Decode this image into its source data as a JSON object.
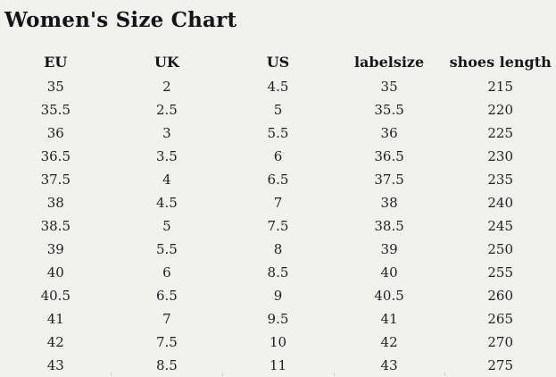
{
  "title": "Women's Size Chart",
  "colors": {
    "background": "#f1f1ef",
    "text": "#1b1b1b",
    "tick_gray": "#c9c9c6"
  },
  "chart_data": {
    "type": "table",
    "title": "Women's Size Chart",
    "columns": [
      "EU",
      "UK",
      "US",
      "labelsize",
      "shoes length"
    ],
    "rows": [
      [
        "35",
        "2",
        "4.5",
        "35",
        "215"
      ],
      [
        "35.5",
        "2.5",
        "5",
        "35.5",
        "220"
      ],
      [
        "36",
        "3",
        "5.5",
        "36",
        "225"
      ],
      [
        "36.5",
        "3.5",
        "6",
        "36.5",
        "230"
      ],
      [
        "37.5",
        "4",
        "6.5",
        "37.5",
        "235"
      ],
      [
        "38",
        "4.5",
        "7",
        "38",
        "240"
      ],
      [
        "38.5",
        "5",
        "7.5",
        "38.5",
        "245"
      ],
      [
        "39",
        "5.5",
        "8",
        "39",
        "250"
      ],
      [
        "40",
        "6",
        "8.5",
        "40",
        "255"
      ],
      [
        "40.5",
        "6.5",
        "9",
        "40.5",
        "260"
      ],
      [
        "41",
        "7",
        "9.5",
        "41",
        "265"
      ],
      [
        "42",
        "7.5",
        "10",
        "42",
        "270"
      ],
      [
        "43",
        "8.5",
        "11",
        "43",
        "275"
      ]
    ]
  }
}
